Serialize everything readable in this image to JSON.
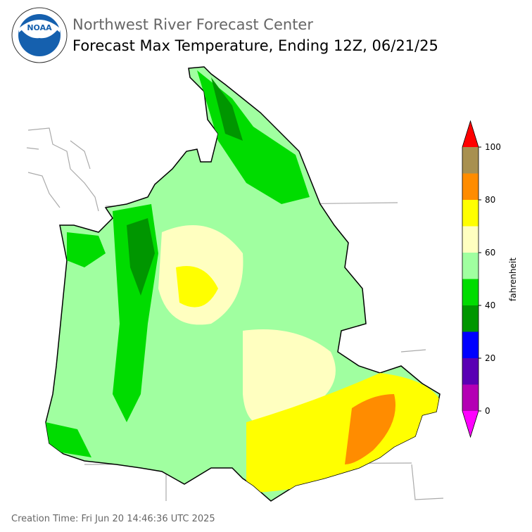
{
  "header": {
    "agency": "Northwest River Forecast Center",
    "title": "Forecast Max Temperature, Ending 12Z, 06/21/25"
  },
  "colorbar": {
    "label": "fahrenheit",
    "lim": [
      0,
      100
    ],
    "ticks": [
      0,
      20,
      40,
      60,
      80,
      100
    ],
    "bounds": [
      0,
      10,
      20,
      30,
      40,
      50,
      60,
      70,
      80,
      90,
      100
    ],
    "colors": [
      "#b400b4",
      "#5a00b4",
      "#0000ff",
      "#009600",
      "#00dc00",
      "#a0ffa0",
      "#ffffc0",
      "#ffff00",
      "#ff8c00",
      "#a89050"
    ],
    "under_color": "#ff00ff",
    "over_color": "#ff0000"
  },
  "footer": {
    "creation_time": "Creation Time: Fri Jun 20 14:46:36 UTC 2025"
  }
}
